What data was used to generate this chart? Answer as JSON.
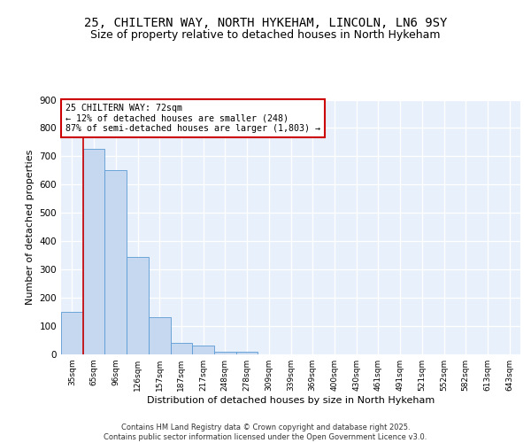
{
  "title1": "25, CHILTERN WAY, NORTH HYKEHAM, LINCOLN, LN6 9SY",
  "title2": "Size of property relative to detached houses in North Hykeham",
  "xlabel": "Distribution of detached houses by size in North Hykeham",
  "ylabel": "Number of detached properties",
  "categories": [
    "35sqm",
    "65sqm",
    "96sqm",
    "126sqm",
    "157sqm",
    "187sqm",
    "217sqm",
    "248sqm",
    "278sqm",
    "309sqm",
    "339sqm",
    "369sqm",
    "400sqm",
    "430sqm",
    "461sqm",
    "491sqm",
    "521sqm",
    "552sqm",
    "582sqm",
    "613sqm",
    "643sqm"
  ],
  "values": [
    150,
    725,
    650,
    343,
    130,
    40,
    30,
    10,
    8,
    0,
    0,
    0,
    0,
    0,
    0,
    0,
    0,
    0,
    0,
    0,
    0
  ],
  "bar_color": "#c5d8f0",
  "bar_edge_color": "#5b9bd5",
  "annotation_text": "25 CHILTERN WAY: 72sqm\n← 12% of detached houses are smaller (248)\n87% of semi-detached houses are larger (1,803) →",
  "annotation_box_color": "#ffffff",
  "annotation_box_edge": "#cc0000",
  "vline_color": "#cc0000",
  "vline_x": 0.5,
  "ylim": [
    0,
    900
  ],
  "yticks": [
    0,
    100,
    200,
    300,
    400,
    500,
    600,
    700,
    800,
    900
  ],
  "background_color": "#e8f0fb",
  "grid_color": "#ffffff",
  "footer": "Contains HM Land Registry data © Crown copyright and database right 2025.\nContains public sector information licensed under the Open Government Licence v3.0.",
  "title_fontsize": 10,
  "subtitle_fontsize": 9,
  "xlabel_fontsize": 8,
  "ylabel_fontsize": 8
}
